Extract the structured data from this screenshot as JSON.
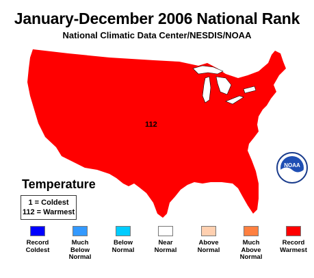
{
  "title": "January-December 2006 National Rank",
  "subtitle": "National Climatic Data Center/NESDIS/NOAA",
  "map": {
    "rank_value": "112",
    "fill_color": "#ff0000",
    "lake_color": "#ffffff"
  },
  "section_title": "Temperature",
  "key": {
    "line1": "1 = Coldest",
    "line2": "112 = Warmest"
  },
  "logo": {
    "text": "NOAA",
    "icon": "noaa-logo-icon"
  },
  "legend": [
    {
      "label_lines": [
        "Record",
        "Coldest"
      ],
      "color": "#0000ff"
    },
    {
      "label_lines": [
        "Much",
        "Below",
        "Normal"
      ],
      "color": "#3399ff"
    },
    {
      "label_lines": [
        "Below",
        "Normal"
      ],
      "color": "#00ccff"
    },
    {
      "label_lines": [
        "Near",
        "Normal"
      ],
      "color": "#ffffff"
    },
    {
      "label_lines": [
        "Above",
        "Normal"
      ],
      "color": "#ffd0b0"
    },
    {
      "label_lines": [
        "Much",
        "Above",
        "Normal"
      ],
      "color": "#ff8040"
    },
    {
      "label_lines": [
        "Record",
        "Warmest"
      ],
      "color": "#ff0000"
    }
  ]
}
